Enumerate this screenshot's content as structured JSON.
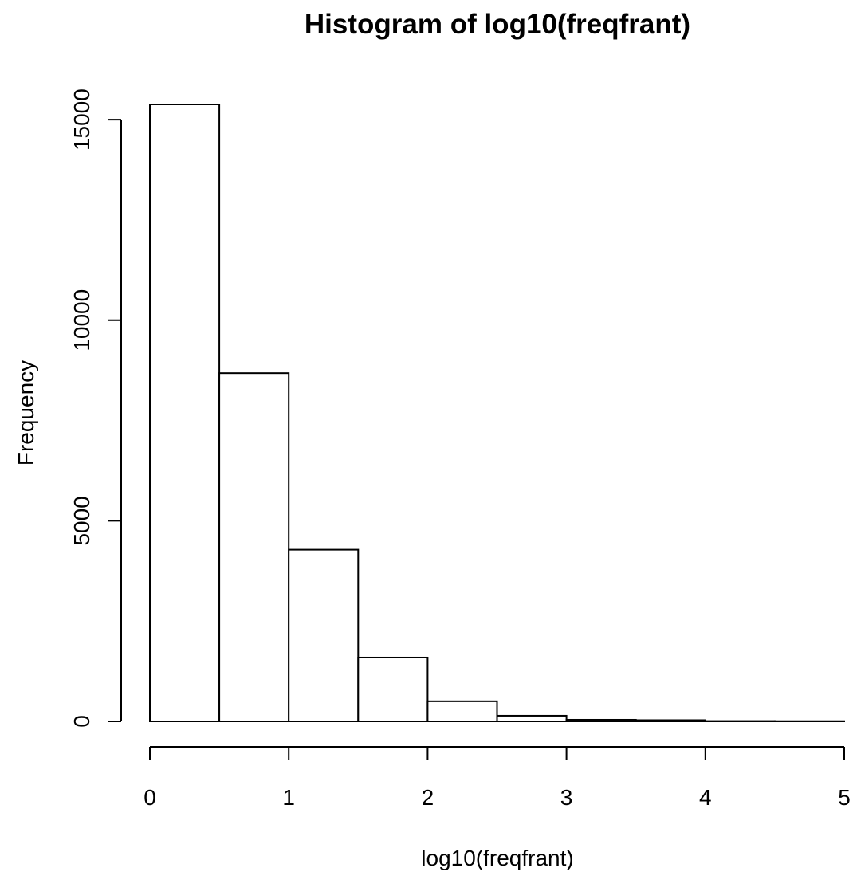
{
  "chart_data": {
    "type": "bar",
    "title": "Histogram of log10(freqfrant)",
    "xlabel": "log10(freqfrant)",
    "ylabel": "Frequency",
    "bins": [
      {
        "from": 0.0,
        "to": 0.5,
        "count": 15380
      },
      {
        "from": 0.5,
        "to": 1.0,
        "count": 8680
      },
      {
        "from": 1.0,
        "to": 1.5,
        "count": 4280
      },
      {
        "from": 1.5,
        "to": 2.0,
        "count": 1590
      },
      {
        "from": 2.0,
        "to": 2.5,
        "count": 500
      },
      {
        "from": 2.5,
        "to": 3.0,
        "count": 140
      },
      {
        "from": 3.0,
        "to": 3.5,
        "count": 40
      },
      {
        "from": 3.5,
        "to": 4.0,
        "count": 30
      },
      {
        "from": 4.0,
        "to": 4.5,
        "count": 8
      },
      {
        "from": 4.5,
        "to": 5.0,
        "count": 5
      }
    ],
    "xticks": [
      0,
      1,
      2,
      3,
      4,
      5
    ],
    "yticks": [
      0,
      5000,
      10000,
      15000
    ],
    "xlim": [
      0,
      5
    ],
    "ylim": [
      0,
      15380
    ],
    "grid": false,
    "legend": "none"
  }
}
